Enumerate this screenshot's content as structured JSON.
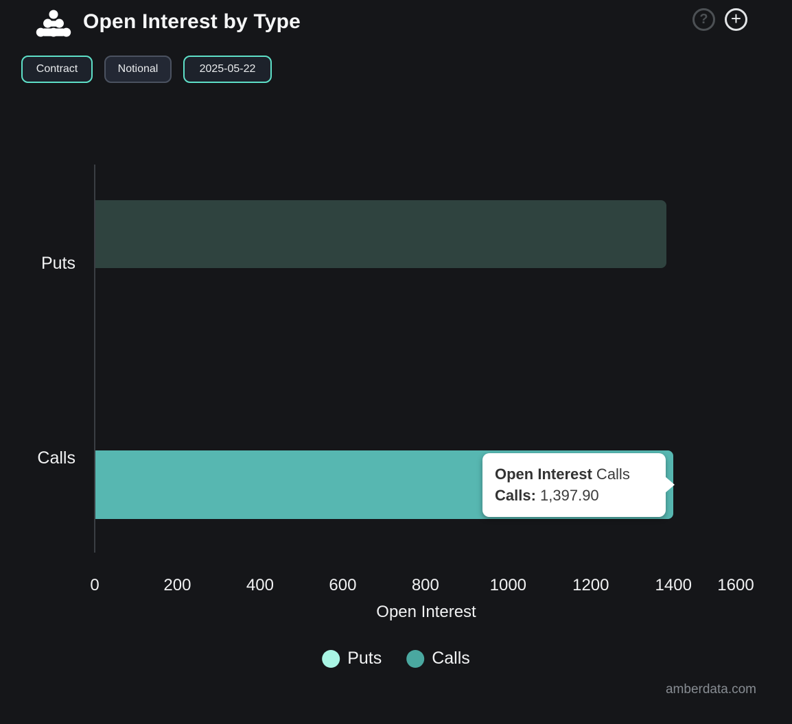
{
  "header": {
    "title": "Open Interest by Type",
    "help_icon_glyph": "?",
    "add_icon_glyph": "+"
  },
  "toolbar": {
    "buttons": [
      {
        "label": "Contract",
        "active": true
      },
      {
        "label": "Notional",
        "active": false
      },
      {
        "label": "2025-05-22",
        "active": true
      }
    ]
  },
  "chart_data": {
    "type": "bar",
    "orientation": "horizontal",
    "title": "Open Interest by Type",
    "categories": [
      "Puts",
      "Calls"
    ],
    "values": [
      1381.3,
      1397.9
    ],
    "value_is_estimated": [
      true,
      false
    ],
    "xlabel": "Open Interest",
    "xticks": [
      0,
      200,
      400,
      600,
      800,
      1000,
      1200,
      1400,
      1600
    ],
    "xlim": [
      0,
      1600
    ],
    "grid": false,
    "legend_position": "bottom",
    "hovered_bar": "Calls",
    "bar_colors": {
      "puts_dimmed": "#2f433f",
      "calls": "#57b7b1"
    }
  },
  "tooltip": {
    "title_bold": "Open Interest",
    "title_rest": " Calls",
    "label_bold": "Calls:",
    "value": " 1,397.90"
  },
  "legend": {
    "items": [
      {
        "label": "Puts",
        "color": "#a9f5e4"
      },
      {
        "label": "Calls",
        "color": "#4aa8a0"
      }
    ]
  },
  "watermark": "amberdata.com",
  "colors": {
    "background": "#151619",
    "accent_teal": "#5ee0c8",
    "axis_line": "#3a3e43",
    "text": "#f2f3f4",
    "muted_text": "#878c92",
    "tooltip_bg": "#ffffff",
    "tooltip_text": "#3b3b3b"
  }
}
